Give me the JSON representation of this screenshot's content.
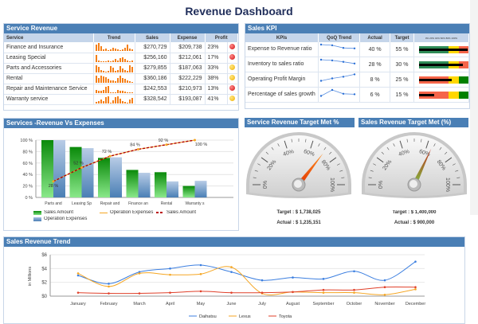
{
  "page": {
    "title": "Revenue Dashboard"
  },
  "service_revenue": {
    "title": "Service Revenue",
    "columns": [
      "Service",
      "Trend",
      "Sales",
      "Expense",
      "Profit"
    ],
    "rows": [
      {
        "service": "Finance and Insurance",
        "trend": [
          8,
          10,
          6,
          2,
          3,
          1,
          2,
          4,
          3,
          2,
          1,
          2,
          4,
          8,
          3,
          2
        ],
        "sales": "$270,729",
        "expense": "$209,738",
        "profit": "23%",
        "status": "red"
      },
      {
        "service": "Leasing Special",
        "trend": [
          9,
          2,
          1,
          1,
          1,
          2,
          1,
          2,
          4,
          2,
          5,
          6,
          4,
          2,
          1,
          2
        ],
        "sales": "$256,160",
        "expense": "$212,061",
        "profit": "17%",
        "status": "red"
      },
      {
        "service": "Parts and Accessories",
        "trend": [
          9,
          7,
          3,
          2,
          1,
          2,
          8,
          6,
          2,
          3,
          8,
          5,
          3,
          2,
          9,
          7
        ],
        "sales": "$279,855",
        "expense": "$187,063",
        "profit": "33%",
        "status": "yellow"
      },
      {
        "service": "Rental",
        "trend": [
          9,
          6,
          9,
          8,
          7,
          5,
          3,
          3,
          2,
          6,
          9,
          6,
          5,
          3,
          2,
          1
        ],
        "sales": "$360,186",
        "expense": "$222,229",
        "profit": "38%",
        "status": "yellow"
      },
      {
        "service": "Repair and Maintenance Service",
        "trend": [
          4,
          3,
          3,
          4,
          8,
          9,
          1,
          1,
          1,
          4,
          3,
          3,
          2,
          1,
          1,
          1
        ],
        "sales": "$242,553",
        "expense": "$210,973",
        "profit": "13%",
        "status": "red"
      },
      {
        "service": "Warranty service",
        "trend": [
          2,
          3,
          5,
          3,
          8,
          9,
          1,
          4,
          8,
          9,
          6,
          3,
          2,
          1,
          5,
          7
        ],
        "sales": "$328,542",
        "expense": "$193,087",
        "profit": "41%",
        "status": "yellow"
      }
    ]
  },
  "sales_kpi": {
    "title": "Sales KPI",
    "columns": [
      "KPIs",
      "QoQ Trend",
      "Actual",
      "Target",
      "0% 20% 40% 60% 80% 100%"
    ],
    "rows": [
      {
        "kpi": "Expense to Revenue ratio",
        "trend": [
          4,
          3.7,
          2.6,
          2.4
        ],
        "actual": "40 %",
        "target": "55 %",
        "actual_pct": 98,
        "bands": [
          "green",
          "green",
          "yellow",
          "red"
        ]
      },
      {
        "kpi": "Inventory to sales ratio",
        "trend": [
          4,
          3.7,
          3.1,
          2.4
        ],
        "actual": "28 %",
        "target": "30 %",
        "actual_pct": 88,
        "bands": [
          "green",
          "green",
          "yellow",
          "red"
        ]
      },
      {
        "kpi": "Operating Profit Margin",
        "trend": [
          1.5,
          2.5,
          3.2,
          4.2
        ],
        "actual": "8 %",
        "target": "25 %",
        "actual_pct": 66,
        "bands": [
          "red",
          "red",
          "yellow",
          "green"
        ]
      },
      {
        "kpi": "Percentage of sales growth",
        "trend": [
          1.5,
          4,
          2.4,
          2.2
        ],
        "actual": "6 %",
        "target": "15 %",
        "actual_pct": 30,
        "bands": [
          "red",
          "red",
          "yellow",
          "green"
        ]
      }
    ]
  },
  "rev_vs_exp": {
    "title": "Services -Revenue Vs Expenses",
    "legend": [
      "Sales Amount",
      "Operation Expenses",
      "Sales Amount",
      "Operation Expenses"
    ]
  },
  "gauge1": {
    "title": "Service Revenue Target Met %",
    "target": "Target : $ 1,738,025",
    "actual": "Actual : $ 1,235,151",
    "value_pct": 71
  },
  "gauge2": {
    "title": "Sales Revenue Target Met (%)",
    "target": "Target : $ 1,400,000",
    "actual": "Actual : $ 900,000",
    "value_pct": 64
  },
  "gauge_ticks": [
    "0%",
    "20%",
    "40%",
    "60%",
    "80%",
    "100%"
  ],
  "trend": {
    "title": "Sales Revenue Trend"
  },
  "colors": {
    "header": "#4a7fb5",
    "green": "#2e8b57",
    "yellow": "#ffd700",
    "red": "#f5654a",
    "darkgreen": "#008000"
  },
  "chart_data": [
    {
      "type": "bar",
      "title": "Services -Revenue Vs Expenses",
      "categories": [
        "Parts and",
        "Leasing Sp",
        "Repair and",
        "Finance an",
        "Rental",
        "Warranty s"
      ],
      "series": [
        {
          "name": "Sales Amount",
          "kind": "bar",
          "values": [
            100,
            88,
            69,
            48,
            44,
            20
          ]
        },
        {
          "name": "Operation Expenses",
          "kind": "bar",
          "values": [
            100,
            86,
            70,
            43,
            28,
            29
          ]
        },
        {
          "name": "Operation Expenses",
          "kind": "line",
          "values": [
            28,
            52,
            72,
            84,
            92,
            100
          ]
        },
        {
          "name": "Sales Amount",
          "kind": "line-dashed",
          "values": [
            28,
            52,
            72,
            84,
            92,
            100
          ]
        }
      ],
      "data_labels": [
        "28 %",
        "52 %",
        "72 %",
        "84 %",
        "92 %",
        "100 %"
      ],
      "yticks": [
        "0 %",
        "20 %",
        "40 %",
        "60 %",
        "80 %",
        "100 %"
      ],
      "ylim": [
        0,
        100
      ]
    },
    {
      "type": "line",
      "title": "Sales Revenue Trend",
      "ylabel": "in Millions",
      "categories": [
        "January",
        "February",
        "March",
        "April",
        "May",
        "June",
        "July",
        "August",
        "September",
        "October",
        "November",
        "December"
      ],
      "series": [
        {
          "name": "Daihatsu",
          "color": "#3c7fe0",
          "values": [
            3.0,
            1.8,
            3.5,
            4.0,
            4.5,
            3.5,
            2.3,
            2.7,
            2.5,
            3.6,
            2.3,
            5.0
          ]
        },
        {
          "name": "Lexus",
          "color": "#f5a623",
          "values": [
            3.3,
            1.4,
            3.3,
            3.1,
            3.2,
            4.2,
            0.4,
            0.6,
            0.5,
            0.5,
            0.2,
            1.0
          ]
        },
        {
          "name": "Toyota",
          "color": "#e0402a",
          "values": [
            0.5,
            0.4,
            0.4,
            0.5,
            0.7,
            0.5,
            0.5,
            0.6,
            0.9,
            0.9,
            1.3,
            1.3
          ]
        }
      ],
      "yticks": [
        "$0",
        "$2",
        "$4",
        "$6"
      ],
      "ylim": [
        0,
        6
      ]
    }
  ]
}
